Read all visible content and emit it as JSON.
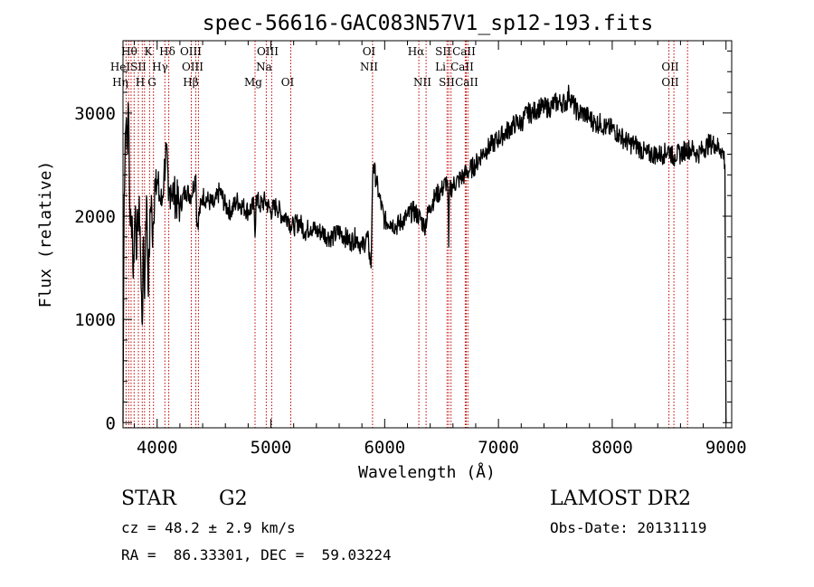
{
  "chart_data": {
    "type": "line",
    "title": "spec-56616-GAC083N57V1_sp12-193.fits",
    "xlabel": "Wavelength (Å)",
    "ylabel": "Flux (relative)",
    "xlim": [
      3700,
      9050
    ],
    "ylim": [
      -50,
      3700
    ],
    "xticks": [
      4000,
      5000,
      6000,
      7000,
      8000,
      9000
    ],
    "yticks": [
      0,
      1000,
      2000,
      3000
    ],
    "grid": false,
    "series": [
      {
        "x": [
          3700,
          3710,
          3720,
          3730,
          3740,
          3745,
          3750,
          3760,
          3770,
          3780,
          3790,
          3800,
          3810,
          3820,
          3830,
          3840,
          3850,
          3860,
          3870,
          3880,
          3890,
          3900,
          3910,
          3920,
          3930,
          3940,
          3950,
          3960,
          3970,
          3980,
          3990,
          4000,
          4020,
          4040,
          4060,
          4080,
          4100,
          4120,
          4150,
          4200,
          4250,
          4300,
          4340,
          4350,
          4400,
          4450,
          4500,
          4550,
          4600,
          4650,
          4700,
          4750,
          4800,
          4850,
          4861,
          4870,
          4900,
          4950,
          5000,
          5050,
          5100,
          5150,
          5175,
          5200,
          5250,
          5300,
          5350,
          5400,
          5450,
          5500,
          5550,
          5600,
          5650,
          5700,
          5750,
          5800,
          5850,
          5880,
          5890,
          5895,
          5900,
          5950,
          6000,
          6050,
          6100,
          6150,
          6200,
          6250,
          6300,
          6350,
          6400,
          6450,
          6500,
          6550,
          6560,
          6563,
          6570,
          6600,
          6650,
          6700,
          6750,
          6800,
          6850,
          6900,
          6950,
          7000,
          7050,
          7100,
          7150,
          7200,
          7250,
          7300,
          7350,
          7400,
          7450,
          7500,
          7550,
          7600,
          7620,
          7650,
          7700,
          7750,
          7800,
          7850,
          7900,
          7950,
          8000,
          8050,
          8100,
          8150,
          8200,
          8250,
          8300,
          8350,
          8400,
          8450,
          8500,
          8542,
          8550,
          8600,
          8650,
          8700,
          8750,
          8800,
          8850,
          8900,
          8950,
          8980,
          8990,
          9000
        ],
        "y": [
          0,
          2200,
          2800,
          2950,
          2600,
          3100,
          3000,
          2050,
          1900,
          2000,
          1400,
          1850,
          2100,
          1600,
          2000,
          2050,
          1900,
          1300,
          950,
          1800,
          1200,
          1950,
          2150,
          1300,
          1600,
          2050,
          2200,
          1700,
          1950,
          2350,
          2450,
          2300,
          2200,
          2100,
          2400,
          2650,
          2150,
          2300,
          2200,
          2100,
          2250,
          2200,
          2400,
          1900,
          2200,
          2150,
          2100,
          2250,
          2100,
          2050,
          2150,
          2100,
          2050,
          2100,
          1800,
          2200,
          2100,
          2150,
          2050,
          2100,
          2000,
          2000,
          1900,
          1900,
          1950,
          1850,
          1900,
          1850,
          1850,
          1800,
          1800,
          1850,
          1800,
          1750,
          1800,
          1700,
          1800,
          1500,
          2150,
          2400,
          2500,
          2200,
          1950,
          1950,
          1900,
          1950,
          2000,
          2050,
          2000,
          1900,
          2100,
          2200,
          2250,
          2350,
          2000,
          1700,
          2250,
          2300,
          2350,
          2400,
          2450,
          2500,
          2600,
          2650,
          2700,
          2750,
          2800,
          2850,
          2900,
          2900,
          3000,
          3000,
          3050,
          3050,
          3050,
          3100,
          3100,
          3100,
          3200,
          3100,
          3000,
          3000,
          2950,
          2900,
          2900,
          2850,
          2850,
          2800,
          2750,
          2700,
          2700,
          2650,
          2600,
          2600,
          2600,
          2600,
          2650,
          2550,
          2600,
          2600,
          2650,
          2650,
          2600,
          2650,
          2700,
          2700,
          2650,
          2600,
          2500,
          0
        ]
      }
    ],
    "line_labels": [
      {
        "label": "Hθ",
        "row": 0
      },
      {
        "label": "K",
        "row": 0
      },
      {
        "label": "Hδ",
        "row": 0
      },
      {
        "label": "OIII",
        "row": 0
      },
      {
        "label": "OIII",
        "row": 0
      },
      {
        "label": "OI",
        "row": 0
      },
      {
        "label": "Hα",
        "row": 0
      },
      {
        "label": "SII",
        "row": 0
      },
      {
        "label": "CaII",
        "row": 0
      },
      {
        "label": "OII",
        "row": 1
      },
      {
        "label": "HeI",
        "row": 1
      },
      {
        "label": "SII",
        "row": 1
      },
      {
        "label": "Hγ",
        "row": 1
      },
      {
        "label": "OIII",
        "row": 1
      },
      {
        "label": "Na",
        "row": 1
      },
      {
        "label": "NII",
        "row": 1
      },
      {
        "label": "Li",
        "row": 1
      },
      {
        "label": "CaII",
        "row": 1
      },
      {
        "label": "OII",
        "row": 2
      },
      {
        "label": "Hη",
        "row": 2
      },
      {
        "label": "H",
        "row": 2
      },
      {
        "label": "G",
        "row": 2
      },
      {
        "label": "Hβ",
        "row": 2
      },
      {
        "label": "Mg",
        "row": 2
      },
      {
        "label": "OI",
        "row": 2
      },
      {
        "label": "NII",
        "row": 2
      },
      {
        "label": "SII",
        "row": 2
      },
      {
        "label": "CaII",
        "row": 2
      }
    ],
    "line_wavelengths": [
      3727,
      3750,
      3771,
      3798,
      3835,
      3869,
      3889,
      3934,
      3968,
      4068,
      4102,
      4300,
      4340,
      4363,
      4861,
      4959,
      5007,
      5175,
      5893,
      6300,
      6364,
      6548,
      6563,
      6583,
      6708,
      6717,
      6731,
      8498,
      8542,
      8662
    ]
  },
  "info": {
    "object_class": "STAR",
    "subclass": "G2",
    "survey": "LAMOST DR2",
    "cz": "cz = 48.2 ± 2.9 km/s",
    "obs_date": "Obs-Date: 20131119",
    "coords": "RA =  86.33301, DEC =  59.03224"
  }
}
